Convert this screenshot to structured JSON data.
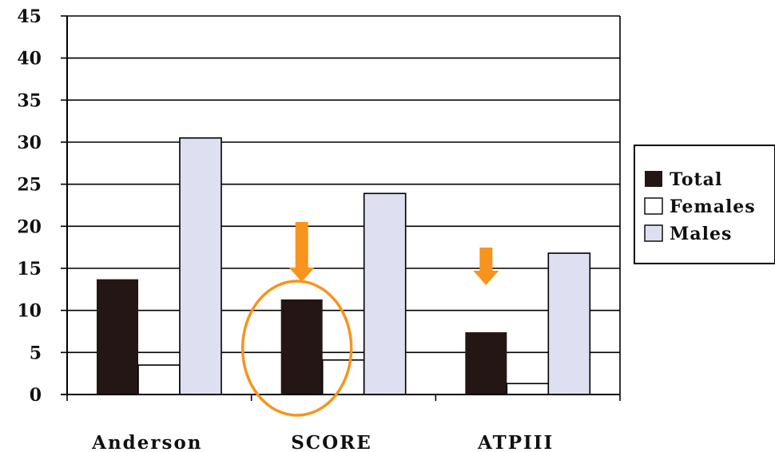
{
  "colors": {
    "total": "#231614",
    "females": "#ffffff",
    "males": "#dedff0",
    "annotation": "#f7941d",
    "axis": "#000000"
  },
  "chart_data": {
    "type": "bar",
    "categories": [
      "Anderson",
      "SCORE",
      "ATPIII"
    ],
    "series": [
      {
        "name": "Total",
        "values": [
          13.7,
          11.3,
          7.4
        ]
      },
      {
        "name": "Females",
        "values": [
          3.5,
          4.1,
          1.3
        ]
      },
      {
        "name": "Males",
        "values": [
          30.5,
          23.9,
          16.8
        ]
      }
    ],
    "ylim": [
      0,
      45
    ],
    "yticks": [
      "0",
      "5",
      "10",
      "15",
      "20",
      "25",
      "30",
      "35",
      "40",
      "45"
    ],
    "grid": true,
    "legend": "right",
    "title": "",
    "xlabel": "",
    "ylabel": "",
    "annotations": [
      {
        "kind": "down-arrow",
        "category": "SCORE"
      },
      {
        "kind": "down-arrow",
        "category": "ATPIII"
      },
      {
        "kind": "ellipse",
        "category": "SCORE"
      }
    ]
  }
}
